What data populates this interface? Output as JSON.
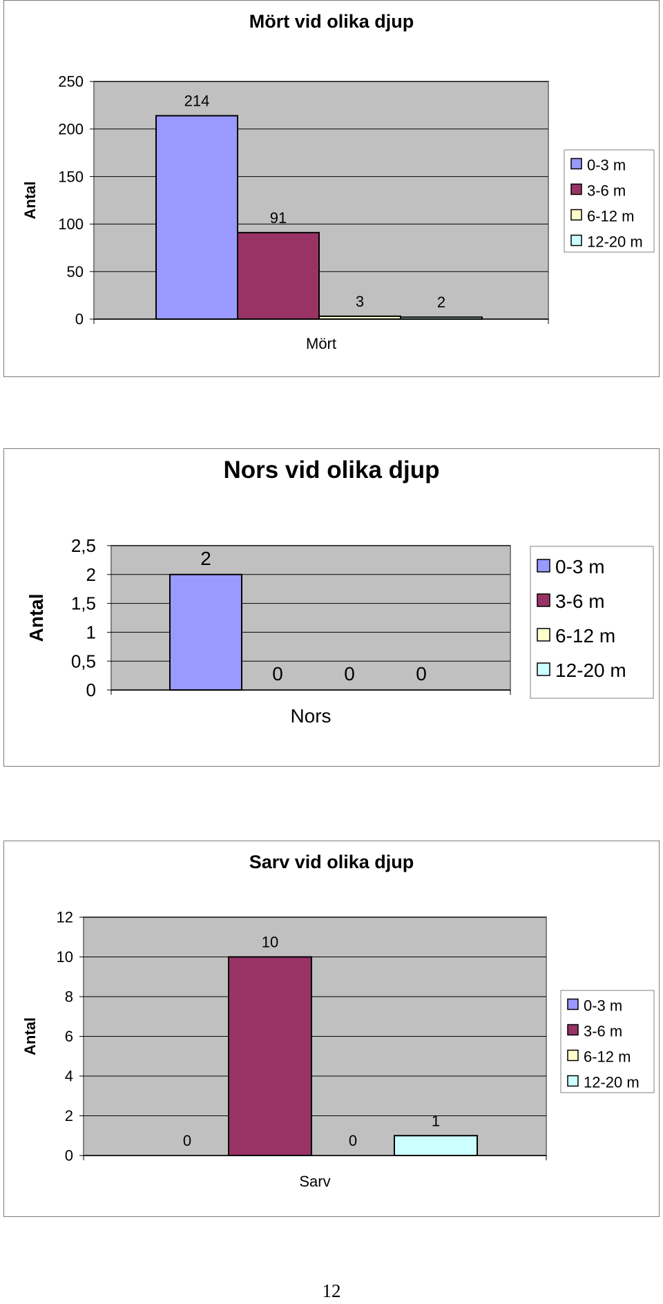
{
  "legend_labels": [
    "0-3 m",
    "3-6 m",
    "6-12 m",
    "12-20 m"
  ],
  "series_colors": [
    "#9999ff",
    "#993366",
    "#ffffcc",
    "#ccffff"
  ],
  "plot_background": "#c0c0c0",
  "chart_data": [
    {
      "type": "bar",
      "title": "Mört vid olika djup",
      "ylabel": "Antal",
      "categories": [
        "Mört"
      ],
      "ylim": [
        0,
        250
      ],
      "yticks": [
        "0",
        "50",
        "100",
        "150",
        "200",
        "250"
      ],
      "grid": true,
      "legend": "right",
      "series": [
        {
          "name": "0-3 m",
          "values": [
            214
          ]
        },
        {
          "name": "3-6 m",
          "values": [
            91
          ]
        },
        {
          "name": "6-12 m",
          "values": [
            3
          ]
        },
        {
          "name": "12-20 m",
          "values": [
            2
          ]
        }
      ]
    },
    {
      "type": "bar",
      "title": "Nors vid olika djup",
      "ylabel": "Antal",
      "categories": [
        "Nors"
      ],
      "ylim": [
        0,
        2.5
      ],
      "yticks": [
        "0",
        "0,5",
        "1",
        "1,5",
        "2",
        "2,5"
      ],
      "grid": true,
      "legend": "right",
      "series": [
        {
          "name": "0-3 m",
          "values": [
            2
          ]
        },
        {
          "name": "3-6 m",
          "values": [
            0
          ]
        },
        {
          "name": "6-12 m",
          "values": [
            0
          ]
        },
        {
          "name": "12-20 m",
          "values": [
            0
          ]
        }
      ]
    },
    {
      "type": "bar",
      "title": "Sarv vid olika djup",
      "ylabel": "Antal",
      "categories": [
        "Sarv"
      ],
      "ylim": [
        0,
        12
      ],
      "yticks": [
        "0",
        "2",
        "4",
        "6",
        "8",
        "10",
        "12"
      ],
      "grid": true,
      "legend": "right",
      "series": [
        {
          "name": "0-3 m",
          "values": [
            0
          ]
        },
        {
          "name": "3-6 m",
          "values": [
            10
          ]
        },
        {
          "name": "6-12 m",
          "values": [
            0
          ]
        },
        {
          "name": "12-20 m",
          "values": [
            1
          ]
        }
      ]
    }
  ],
  "page_number": "12"
}
